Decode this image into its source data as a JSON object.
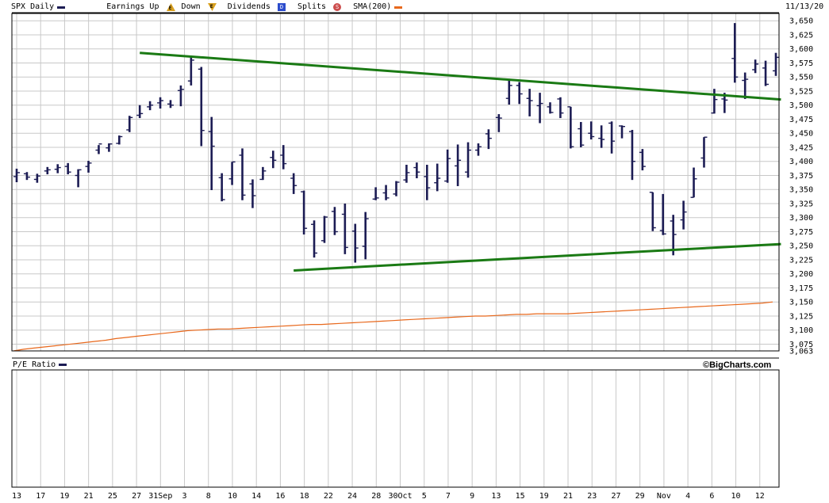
{
  "header": {
    "symbol_label": "SPX Daily",
    "earnings_label": "Earnings Up",
    "earnings_up_glyph": "E",
    "down_label": "Down",
    "earnings_down_glyph": "E",
    "dividends_label": "Dividends",
    "dividends_glyph": "D",
    "splits_label": "Splits",
    "splits_glyph": "S",
    "sma_label": "SMA(200)",
    "date": "11/13/20"
  },
  "colors": {
    "price_bars": "#1c1c54",
    "sma": "#e8681c",
    "trendline": "#1a7a14",
    "grid": "#c8c8c8",
    "earnings_up": "#d8a020",
    "dividends": "#2c4ccc",
    "splits": "#cc4c4c"
  },
  "lower_panel": {
    "label": "P/E Ratio",
    "credit": "©BigCharts.com"
  },
  "chart_data": {
    "type": "ohlc",
    "title": "SPX Daily",
    "ylim": [
      3063,
      3663
    ],
    "y_ticks": [
      3063,
      3075,
      3100,
      3125,
      3150,
      3175,
      3200,
      3225,
      3250,
      3275,
      3300,
      3325,
      3350,
      3375,
      3400,
      3425,
      3450,
      3475,
      3500,
      3525,
      3550,
      3575,
      3600,
      3625,
      3650
    ],
    "y_tick_labels": [
      "3,063",
      "3,075",
      "3,100",
      "3,125",
      "3,150",
      "3,175",
      "3,200",
      "3,225",
      "3,250",
      "3,275",
      "3,300",
      "3,325",
      "3,350",
      "3,375",
      "3,400",
      "3,425",
      "3,450",
      "3,475",
      "3,500",
      "3,525",
      "3,550",
      "3,575",
      "3,600",
      "3,625",
      "3,650"
    ],
    "x_tick_labels": [
      "13",
      "17",
      "19",
      "21",
      "25",
      "27",
      "31Sep",
      "3",
      "8",
      "10",
      "14",
      "16",
      "18",
      "22",
      "24",
      "28",
      "30Oct",
      "5",
      "7",
      "9",
      "13",
      "15",
      "19",
      "21",
      "23",
      "27",
      "29",
      "Nov",
      "4",
      "6",
      "10",
      "12"
    ],
    "x_tick_index": [
      0,
      2,
      4,
      6,
      8,
      10,
      12,
      14,
      16,
      18,
      20,
      22,
      24,
      26,
      28,
      30,
      32,
      34,
      36,
      38,
      40,
      42,
      44,
      46,
      48,
      50,
      52,
      54,
      56,
      58,
      60,
      62
    ],
    "n_days": 64,
    "ohlc": [
      [
        3373,
        3387,
        3363,
        3380
      ],
      [
        3378,
        3381,
        3367,
        3372
      ],
      [
        3368,
        3378,
        3362,
        3374
      ],
      [
        3383,
        3390,
        3377,
        3385
      ],
      [
        3386,
        3395,
        3379,
        3389
      ],
      [
        3391,
        3397,
        3377,
        3381
      ],
      [
        3375,
        3386,
        3354,
        3385
      ],
      [
        3391,
        3401,
        3380,
        3397
      ],
      [
        3420,
        3429,
        3413,
        3431
      ],
      [
        3424,
        3432,
        3417,
        3431
      ],
      [
        3432,
        3446,
        3430,
        3444
      ],
      [
        3456,
        3481,
        3452,
        3478
      ],
      [
        3482,
        3500,
        3477,
        3485
      ],
      [
        3497,
        3507,
        3491,
        3500
      ],
      [
        3504,
        3514,
        3494,
        3508
      ],
      [
        3502,
        3509,
        3495,
        3500
      ],
      [
        3526,
        3535,
        3498,
        3528
      ],
      [
        3543,
        3588,
        3535,
        3580
      ],
      [
        3564,
        3568,
        3427,
        3455
      ],
      [
        3453,
        3479,
        3349,
        3427
      ],
      [
        3371,
        3379,
        3329,
        3332
      ],
      [
        3369,
        3399,
        3358,
        3399
      ],
      [
        3411,
        3423,
        3331,
        3340
      ],
      [
        3360,
        3368,
        3317,
        3339
      ],
      [
        3368,
        3390,
        3367,
        3383
      ],
      [
        3407,
        3419,
        3388,
        3402
      ],
      [
        3411,
        3429,
        3386,
        3396
      ],
      [
        3370,
        3379,
        3342,
        3357
      ],
      [
        3346,
        3348,
        3270,
        3281
      ],
      [
        3288,
        3295,
        3229,
        3237
      ],
      [
        3259,
        3303,
        3255,
        3301
      ],
      [
        3311,
        3319,
        3269,
        3275
      ],
      [
        3306,
        3325,
        3235,
        3247
      ],
      [
        3276,
        3289,
        3220,
        3246
      ],
      [
        3249,
        3310,
        3226,
        3298
      ],
      [
        3333,
        3354,
        3331,
        3335
      ],
      [
        3344,
        3358,
        3331,
        3335
      ],
      [
        3342,
        3365,
        3338,
        3363
      ],
      [
        3367,
        3394,
        3362,
        3380
      ],
      [
        3389,
        3398,
        3370,
        3381
      ],
      [
        3373,
        3394,
        3331,
        3353
      ],
      [
        3362,
        3396,
        3347,
        3370
      ],
      [
        3365,
        3421,
        3362,
        3405
      ],
      [
        3392,
        3430,
        3356,
        3402
      ],
      [
        3381,
        3434,
        3371,
        3420
      ],
      [
        3420,
        3432,
        3410,
        3426
      ],
      [
        3449,
        3457,
        3422,
        3441
      ],
      [
        3478,
        3484,
        3452,
        3477
      ],
      [
        3512,
        3547,
        3501,
        3535
      ],
      [
        3535,
        3541,
        3502,
        3520
      ],
      [
        3512,
        3529,
        3480,
        3508
      ],
      [
        3499,
        3522,
        3468,
        3503
      ],
      [
        3497,
        3505,
        3485,
        3487
      ],
      [
        3511,
        3514,
        3477,
        3486
      ],
      [
        3497,
        3497,
        3423,
        3426
      ],
      [
        3458,
        3470,
        3425,
        3429
      ],
      [
        3450,
        3471,
        3439,
        3444
      ],
      [
        3441,
        3464,
        3424,
        3439
      ],
      [
        3468,
        3471,
        3414,
        3436
      ],
      [
        3463,
        3464,
        3441,
        3462
      ],
      [
        3453,
        3456,
        3367,
        3400
      ],
      [
        3416,
        3422,
        3384,
        3391
      ],
      [
        3345,
        3345,
        3276,
        3282
      ],
      [
        3277,
        3342,
        3269,
        3271
      ]
    ],
    "ohlc_tail": [
      [
        3294,
        3305,
        3233,
        3270
      ],
      [
        3296,
        3330,
        3279,
        3310
      ],
      [
        3336,
        3389,
        3336,
        3369
      ],
      [
        3406,
        3443,
        3389,
        3443
      ],
      [
        3486,
        3529,
        3485,
        3510
      ],
      [
        3511,
        3522,
        3486,
        3509
      ],
      [
        3583,
        3646,
        3540,
        3550
      ],
      [
        3544,
        3558,
        3511,
        3546
      ],
      [
        3563,
        3581,
        3557,
        3573
      ],
      [
        3566,
        3579,
        3534,
        3537
      ],
      [
        3561,
        3593,
        3552,
        3585
      ]
    ],
    "series": [
      {
        "name": "SMA(200)",
        "values": [
          3063,
          3066,
          3068,
          3070,
          3072,
          3074,
          3076,
          3078,
          3080,
          3082,
          3085,
          3087,
          3089,
          3091,
          3093,
          3095,
          3097,
          3099,
          3100,
          3101,
          3102,
          3102,
          3103,
          3104,
          3105,
          3106,
          3107,
          3108,
          3109,
          3110,
          3110,
          3111,
          3112,
          3113,
          3114,
          3115,
          3116,
          3117,
          3118,
          3119,
          3120,
          3121,
          3122,
          3123,
          3124,
          3125,
          3125,
          3126,
          3127,
          3128,
          3128,
          3129,
          3129,
          3129,
          3129,
          3130,
          3131,
          3132,
          3133,
          3134,
          3135,
          3136,
          3137,
          3138,
          3139,
          3140,
          3141,
          3142,
          3143,
          3144,
          3145,
          3146,
          3147,
          3148,
          3150
        ]
      }
    ],
    "trendlines": [
      {
        "from": {
          "day": 12,
          "value": 3593
        },
        "to": {
          "day": 74.5,
          "value": 3510
        }
      },
      {
        "from": {
          "day": 27,
          "value": 3206
        },
        "to": {
          "day": 74.5,
          "value": 3253
        }
      }
    ],
    "xlabel": "",
    "ylabel": "",
    "grid": true
  }
}
